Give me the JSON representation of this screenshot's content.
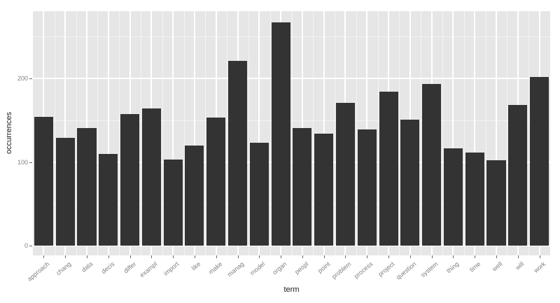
{
  "chart_data": {
    "type": "bar",
    "title": "",
    "xlabel": "term",
    "ylabel": "occurrences",
    "categories": [
      "approach",
      "chang",
      "data",
      "decis",
      "differ",
      "exampl",
      "import",
      "like",
      "make",
      "manag",
      "model",
      "organ",
      "peopl",
      "point",
      "problem",
      "process",
      "project",
      "question",
      "system",
      "thing",
      "time",
      "well",
      "will",
      "work"
    ],
    "values": [
      154,
      129,
      141,
      110,
      157,
      164,
      103,
      120,
      153,
      221,
      123,
      267,
      141,
      134,
      171,
      139,
      184,
      151,
      193,
      116,
      111,
      102,
      168,
      202
    ],
    "ylim": [
      0,
      281
    ],
    "y_major_ticks": [
      0,
      100,
      200
    ],
    "y_minor_gridlines": [
      50,
      150,
      250
    ],
    "grid": "on",
    "legend_position": "none",
    "colors": {
      "bar_fill": "#333333",
      "panel_background": "#e6e6e6",
      "gridline": "#ffffff",
      "axis_text": "#7f7f7f",
      "axis_title": "#1a1a1a",
      "tick_mark": "#666666",
      "figure_background": "#ffffff"
    }
  }
}
